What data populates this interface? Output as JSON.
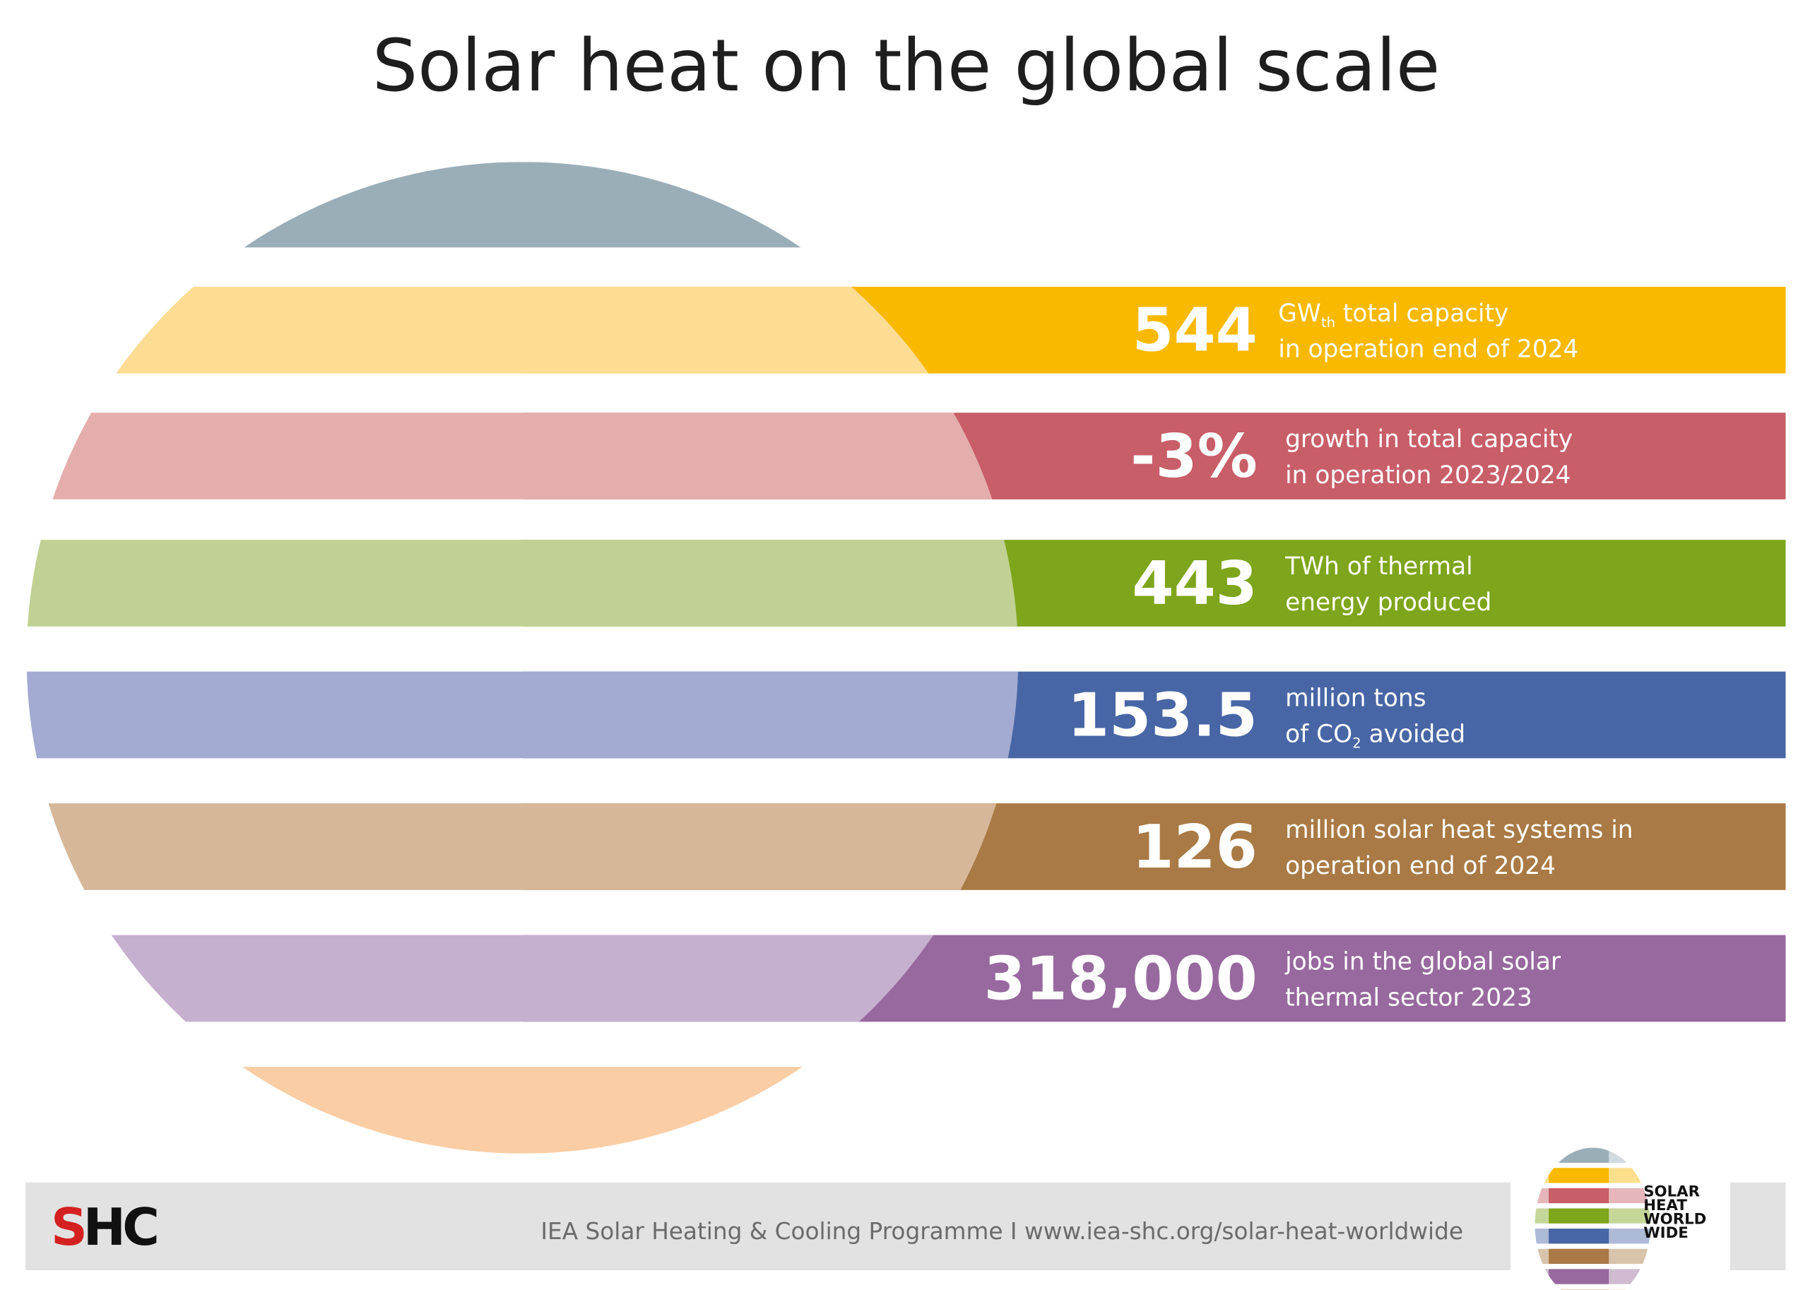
{
  "title": "Solar heat on the global scale",
  "top_cap_color": "#9aaeb8",
  "bottom_cap_color": "#fbcda4",
  "stats": [
    {
      "value": "544",
      "line1_pre": "GW",
      "line1_sub": "th",
      "line1_post": " total capacity",
      "line2": "in operation end of 2024",
      "light": "#fddc93",
      "dark": "#f9b900"
    },
    {
      "value": "-3%",
      "line1_pre": "growth in total capacity",
      "line1_sub": "",
      "line1_post": "",
      "line2": "in operation 2023/2024",
      "light": "#e4aeac",
      "dark": "#c85e68"
    },
    {
      "value": "443",
      "line1_pre": "TWh of thermal",
      "line1_sub": "",
      "line1_post": "",
      "line2": "energy produced",
      "light": "#c1d193",
      "dark": "#7ea51c"
    },
    {
      "value": "153.5",
      "line1_pre": "million tons",
      "line1_sub": "",
      "line1_post": "",
      "line2_pre": "of CO",
      "line2_sub": "2",
      "line2_post": " avoided",
      "light": "#a3abd2",
      "dark": "#4866a5"
    },
    {
      "value": "126",
      "line1_pre": "million solar heat systems in",
      "line1_sub": "",
      "line1_post": "",
      "line2": "operation end of 2024",
      "light": "#d6b799",
      "dark": "#a97a45"
    },
    {
      "value": "318,000",
      "line1_pre": "jobs in the global solar",
      "line1_sub": "",
      "line1_post": "",
      "line2": "thermal sector 2023",
      "light": "#c6b0cf",
      "dark": "#97699e"
    }
  ],
  "footer": {
    "org_logo": "SHC",
    "text": "IEA Solar Heating & Cooling Programme I www.iea-shc.org/solar-heat-worldwide",
    "badge_lines": [
      "SOLAR",
      "HEAT",
      "WORLD",
      "WIDE"
    ],
    "background": "#e2e2e2"
  }
}
